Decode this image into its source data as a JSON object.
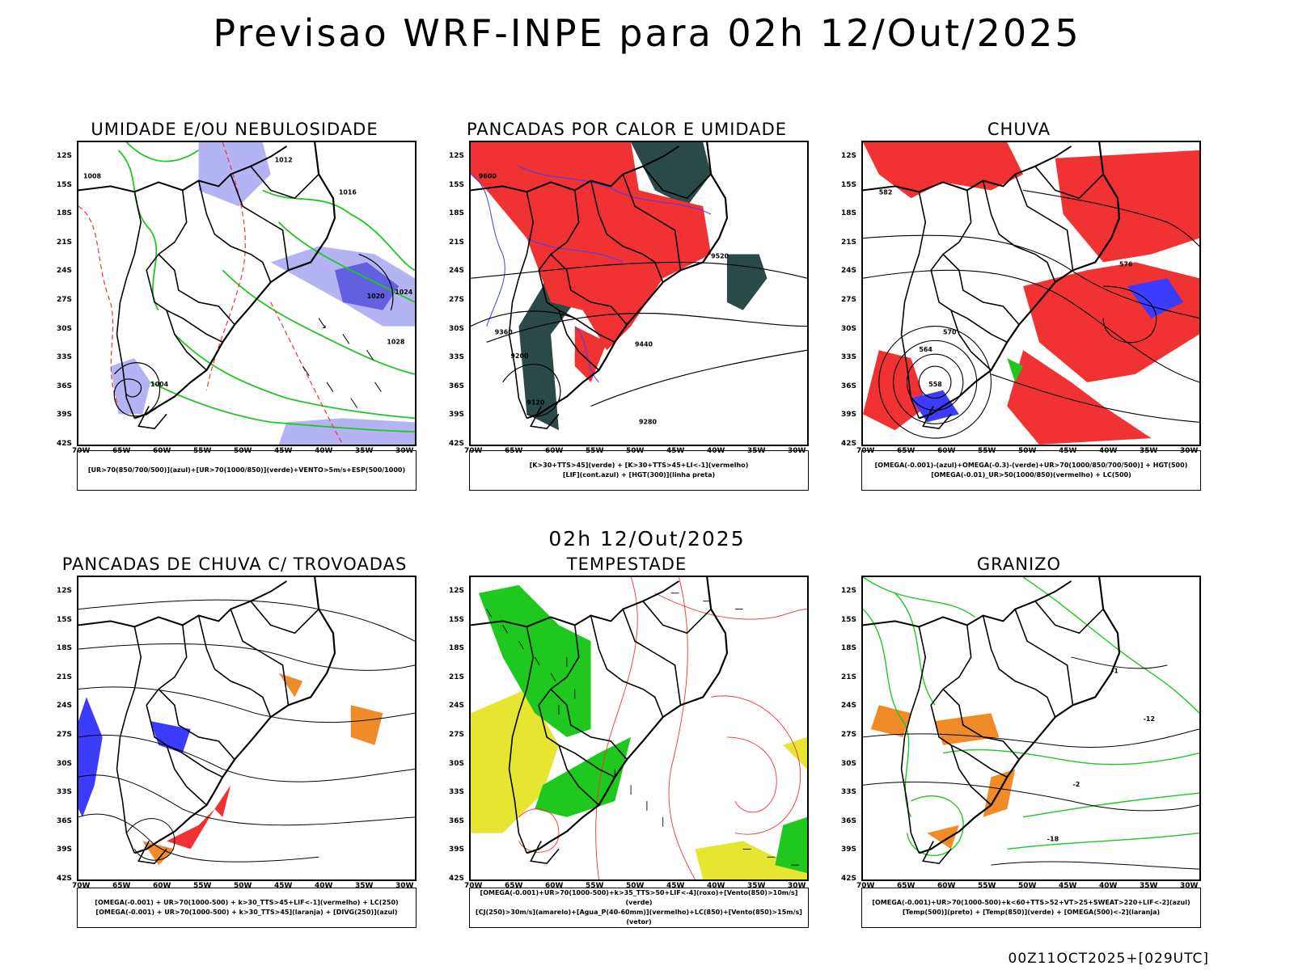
{
  "main_title": "Previsao WRF-INPE  para 02h 12/Out/2025",
  "mid_date": "02h 12/Out/2025",
  "footer": "00Z11OCT2025+[029UTC]",
  "lat_labels": [
    "12S",
    "15S",
    "18S",
    "21S",
    "24S",
    "27S",
    "30S",
    "33S",
    "36S",
    "39S",
    "42S"
  ],
  "lon_labels": [
    "70W",
    "65W",
    "60W",
    "55W",
    "50W",
    "45W",
    "40W",
    "35W",
    "30W"
  ],
  "colors": {
    "green": "#1ec81e",
    "red": "#f03232",
    "blue": "#3c3cff",
    "lavender": "#b4b4f5",
    "teal": "#2a4a48",
    "orange": "#f08c28",
    "yellow": "#e6e632"
  },
  "panels": [
    {
      "title": "UMIDADE E/OU NEBULOSIDADE",
      "legend": [
        "[UR>70(850/700/500)](azul)+[UR>70(1000/850)](verde)+VENTO>5m/s+ESP(500/1000)"
      ]
    },
    {
      "title": "PANCADAS POR CALOR E UMIDADE",
      "legend": [
        "[K>30+TTS>45](verde) + [K>30+TTS>45+LI<-1](vermelho)",
        "[LIF](cont.azul) + [HGT(300)](linha preta)"
      ]
    },
    {
      "title": "CHUVA",
      "legend": [
        "[OMEGA(-0.001)-(azul)+OMEGA(-0.3)-(verde)+UR>70(1000/850/700/500)] + HGT(500)",
        "[OMEGA(-0.01)_UR>50(1000/850)(vermelho) + LC(500)"
      ]
    },
    {
      "title": "PANCADAS DE CHUVA C/ TROVOADAS",
      "legend": [
        "[OMEGA(-0.001) + UR>70(1000-500) + k>30_TTS>45+LIF<-1](vermelho) + LC(250)",
        "[OMEGA(-0.001) + UR>70(1000-500) + k>30_TTS>45](laranja) + [DIVG(250)](azul)"
      ]
    },
    {
      "title": "TEMPESTADE",
      "legend": [
        "[OMEGA(-0.001)+UR>70(1000-500)+k>35_TTS>50+LIF<-4](roxo)+[Vento(850)>10m/s](verde)",
        "[CJ(250)>30m/s](amarelo)+[Agua_P(40-60mm)](vermelho)+LC(850)+[Vento(850)>15m/s](vetor)"
      ]
    },
    {
      "title": "GRANIZO",
      "legend": [
        "[OMEGA(-0.001)+UR>70(1000-500)+k<60+TTS>52+VT>25+SWEAT>220+LIF<-2](azul)",
        "[Temp(500)](preto) + [Temp(850)](verde) + [OMEGA(500)<-2](laranja)"
      ]
    }
  ],
  "contour_labels": {
    "p1": [
      "1008",
      "1012",
      "1016",
      "1020",
      "1024",
      "1028",
      "1004"
    ],
    "p2": [
      "9600",
      "9520",
      "9440",
      "9360",
      "9280",
      "9200",
      "9120"
    ],
    "p3": [
      "582",
      "576",
      "570",
      "564",
      "558"
    ],
    "p6": [
      "-12",
      "-18",
      "-2",
      "-1"
    ]
  }
}
